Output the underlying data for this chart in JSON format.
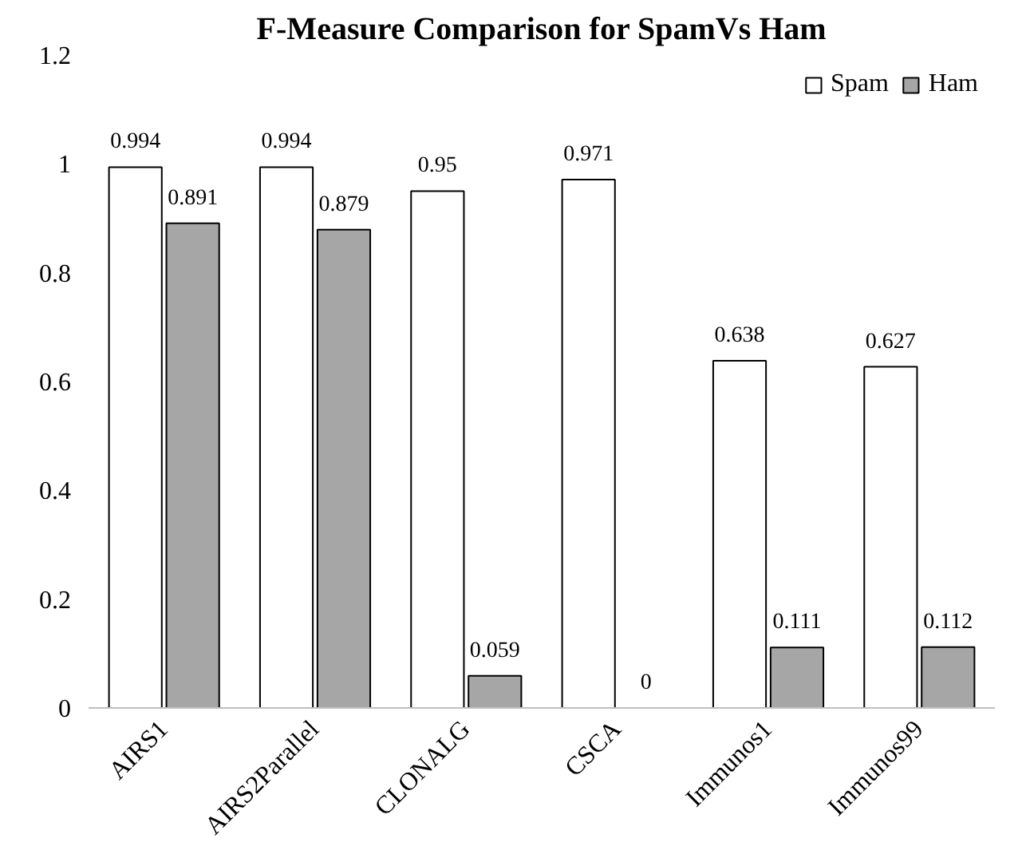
{
  "chart_data": {
    "type": "bar",
    "title": "F-Measure Comparison for SpamVs Ham",
    "categories": [
      "AIRS1",
      "AIRS2Parallel",
      "CLONALG",
      "CSCA",
      "Immunos1",
      "Immunos99"
    ],
    "series": [
      {
        "name": "Spam",
        "color": "#ffffff",
        "values": [
          0.994,
          0.994,
          0.95,
          0.971,
          0.638,
          0.627
        ]
      },
      {
        "name": "Ham",
        "color": "#a6a6a6",
        "values": [
          0.891,
          0.879,
          0.059,
          0,
          0.111,
          0.112
        ]
      }
    ],
    "ylim": [
      0,
      1.2
    ],
    "yticks": [
      0,
      0.2,
      0.4,
      0.6,
      0.8,
      1,
      1.2
    ],
    "grid": false,
    "legend": "top right",
    "data_labels": true
  }
}
